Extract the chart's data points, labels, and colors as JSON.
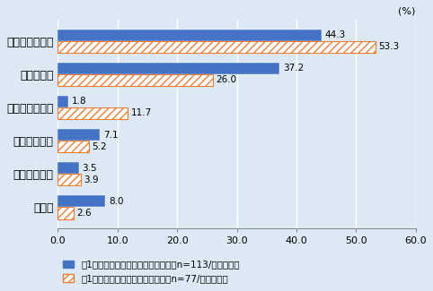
{
  "categories": [
    "何も変更しない",
    "分からない",
    "生産拠点の変更",
    "調達先の変更",
    "販売先の変更",
    "その他"
  ],
  "blue_values": [
    44.3,
    37.2,
    1.8,
    7.1,
    3.5,
    8.0
  ],
  "orange_values": [
    53.3,
    26.0,
    11.7,
    5.2,
    3.9,
    2.6
  ],
  "blue_color": "#4472C4",
  "orange_color": "#ED7D31",
  "background_color": "#DCE9F5",
  "xlim": [
    0,
    60.0
  ],
  "xticks": [
    0.0,
    10.0,
    20.0,
    30.0,
    40.0,
    50.0,
    60.0
  ],
  "percent_label": "(%)",
  "legend1": "図1でマイナスの影響と回答した先（n=113/複数回答）",
  "legend2": "図1でプラスの影響と回答した先（n=77/複数回答）",
  "label_fontsize": 9,
  "tick_fontsize": 8,
  "legend_fontsize": 7.5,
  "value_fontsize": 7.5
}
